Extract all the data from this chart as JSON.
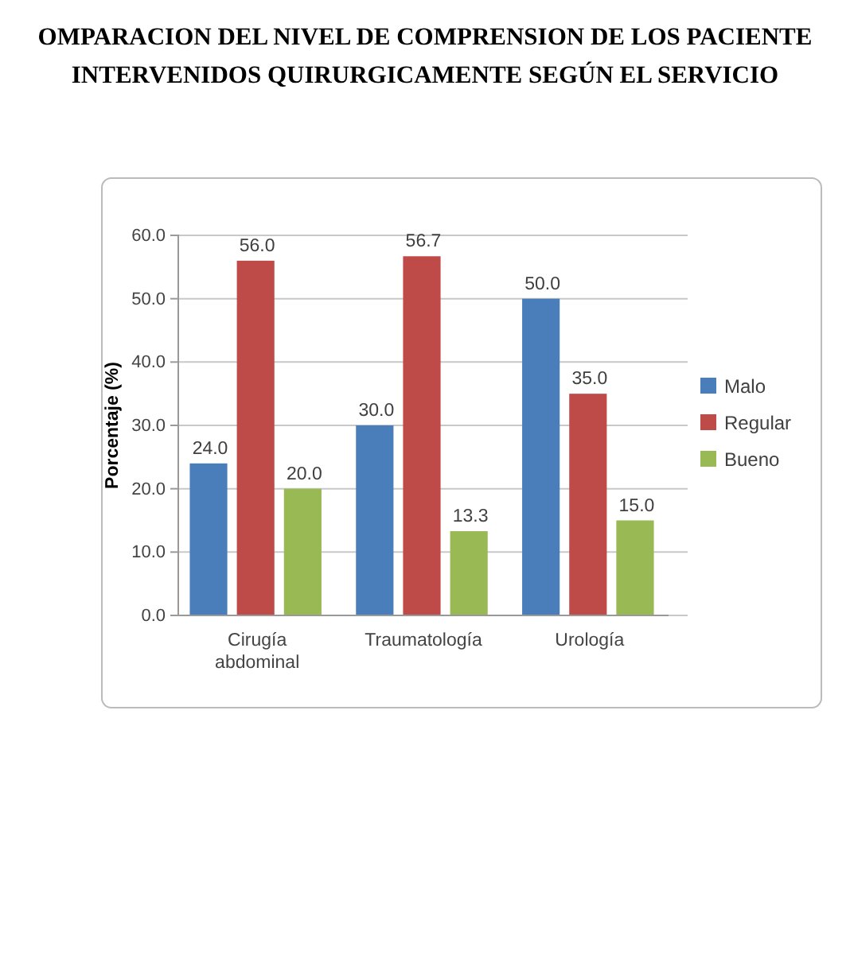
{
  "chart_data": {
    "type": "bar",
    "title": "OMPARACION DEL NIVEL DE COMPRENSION DE LOS PACIENTE",
    "subtitle": "INTERVENIDOS QUIRURGICAMENTE SEGÚN EL SERVICIO",
    "ylabel": "Porcentaje (%)",
    "categories": [
      "Cirugía abdominal",
      "Traumatología",
      "Urología"
    ],
    "series": [
      {
        "name": "Malo",
        "color": "#4a7ebb",
        "values": [
          24.0,
          30.0,
          50.0
        ],
        "value_labels": [
          "24.0",
          "30.0",
          "50.0"
        ]
      },
      {
        "name": "Regular",
        "color": "#be4b48",
        "values": [
          56.0,
          56.7,
          35.0
        ],
        "value_labels": [
          "56.0",
          "56.7",
          "35.0"
        ]
      },
      {
        "name": "Bueno",
        "color": "#98b954",
        "values": [
          20.0,
          13.3,
          15.0
        ],
        "value_labels": [
          "20.0",
          "13.3",
          "15.0"
        ]
      }
    ],
    "ylim": [
      0,
      60
    ],
    "yticks": [
      {
        "value": 0,
        "label": "0.0"
      },
      {
        "value": 10,
        "label": "10.0"
      },
      {
        "value": 20,
        "label": "20.0"
      },
      {
        "value": 30,
        "label": "30.0"
      },
      {
        "value": 40,
        "label": "40.0"
      },
      {
        "value": 50,
        "label": "50.0"
      },
      {
        "value": 60,
        "label": "60.0"
      }
    ],
    "grid": "y",
    "legend": "right"
  }
}
